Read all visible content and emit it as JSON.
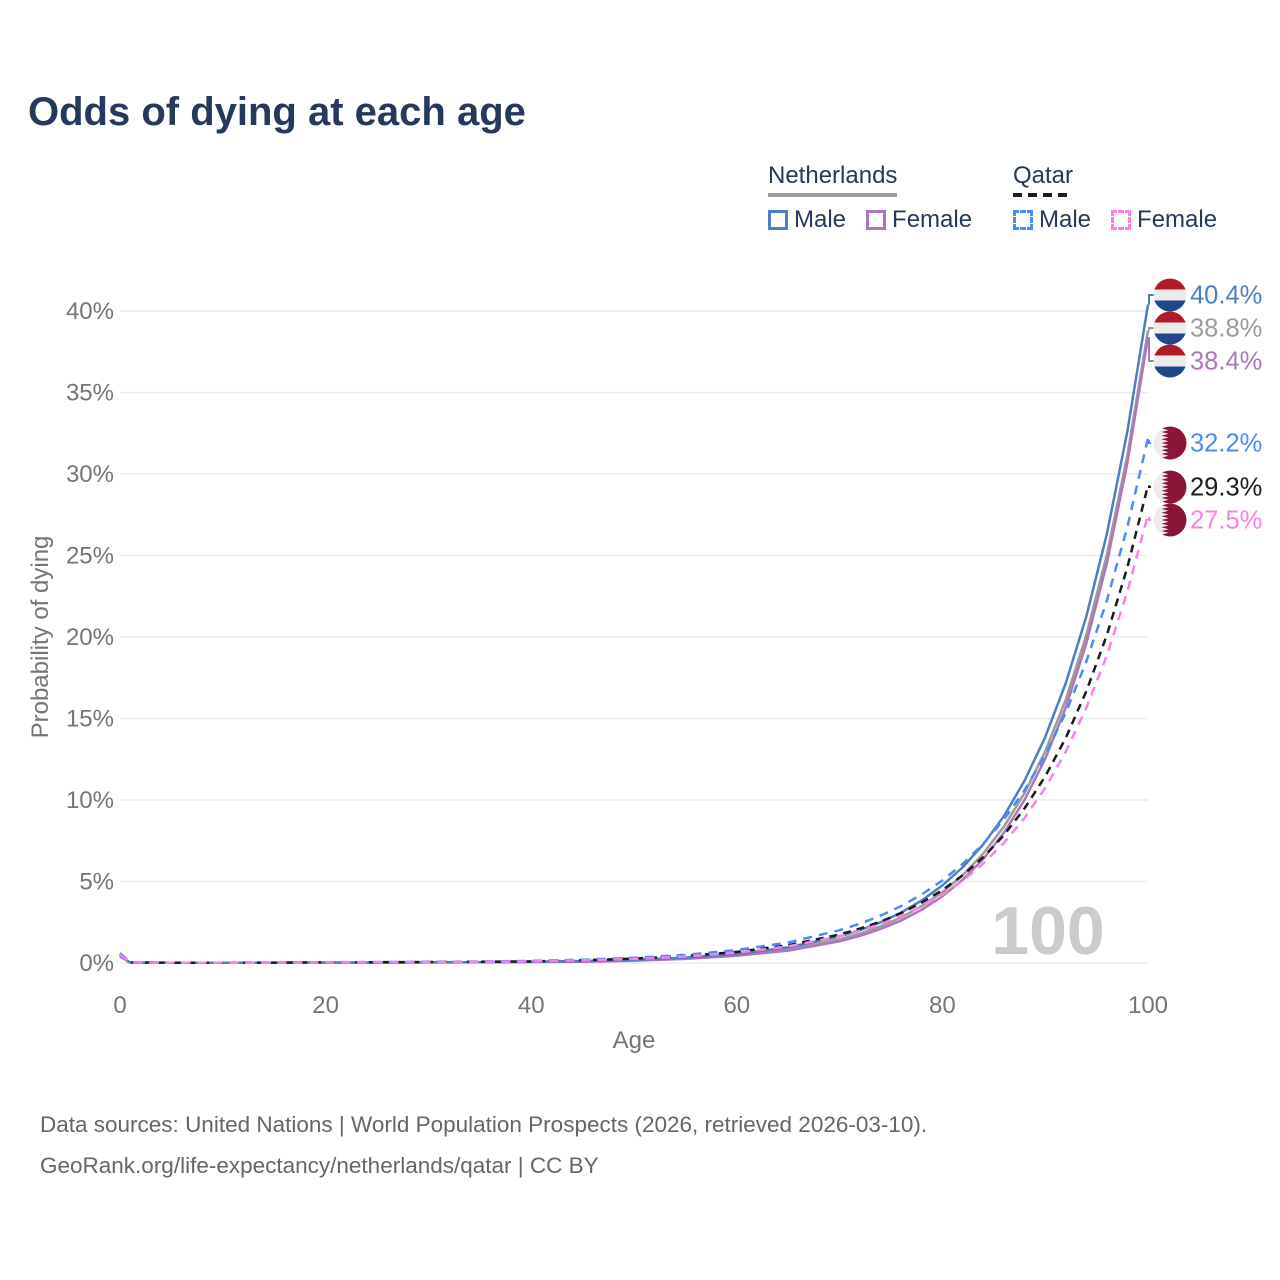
{
  "title": "Odds of dying at each age",
  "legend": {
    "groups": [
      {
        "label": "Netherlands",
        "line_style": "solid",
        "underline_color": "#9C9C9C",
        "items": [
          {
            "label": "Male",
            "color": "#4D7EC2",
            "dash": false
          },
          {
            "label": "Female",
            "color": "#AF75BC",
            "dash": false
          }
        ]
      },
      {
        "label": "Qatar",
        "line_style": "dashed",
        "underline_color": "#1B1B1B",
        "items": [
          {
            "label": "Male",
            "color": "#4A8CF7",
            "dash": true
          },
          {
            "label": "Female",
            "color": "#FA80E8",
            "dash": true
          }
        ]
      }
    ]
  },
  "chart_data": {
    "type": "line",
    "title": "Odds of dying at each age",
    "xlabel": "Age",
    "ylabel": "Probability of dying",
    "xlim": [
      0,
      100
    ],
    "ylim": [
      0,
      40.4
    ],
    "xticks": [
      0,
      20,
      40,
      60,
      80,
      100
    ],
    "xtick_labels": [
      "0",
      "20",
      "40",
      "60",
      "80",
      "100"
    ],
    "yticks": [
      0,
      5,
      10,
      15,
      20,
      25,
      30,
      35,
      40
    ],
    "ytick_labels": [
      "0%",
      "5%",
      "10%",
      "15%",
      "20%",
      "25%",
      "30%",
      "35%",
      "40%"
    ],
    "grid": "horizontal",
    "legend_position": "top-right",
    "watermark": "100",
    "series": [
      {
        "id": "netherlands-all",
        "name": "Netherlands",
        "country": "Netherlands",
        "sex": "all",
        "color": "#9C9C9C",
        "dash": false,
        "flag": "netherlands",
        "end_label": "38.8%",
        "points": [
          [
            0,
            0.42
          ],
          [
            1,
            0.025
          ],
          [
            5,
            0.01
          ],
          [
            10,
            0.01
          ],
          [
            15,
            0.015
          ],
          [
            20,
            0.025
          ],
          [
            25,
            0.025
          ],
          [
            30,
            0.035
          ],
          [
            35,
            0.045
          ],
          [
            40,
            0.07
          ],
          [
            45,
            0.1
          ],
          [
            50,
            0.17
          ],
          [
            55,
            0.28
          ],
          [
            60,
            0.49
          ],
          [
            65,
            0.84
          ],
          [
            70,
            1.45
          ],
          [
            72,
            1.81
          ],
          [
            74,
            2.25
          ],
          [
            76,
            2.8
          ],
          [
            78,
            3.49
          ],
          [
            80,
            4.34
          ],
          [
            82,
            5.4
          ],
          [
            84,
            6.73
          ],
          [
            86,
            8.38
          ],
          [
            88,
            10.43
          ],
          [
            90,
            12.98
          ],
          [
            92,
            16.16
          ],
          [
            94,
            20.11
          ],
          [
            96,
            25.04
          ],
          [
            98,
            31.17
          ],
          [
            100,
            38.8
          ]
        ]
      },
      {
        "id": "netherlands-female",
        "name": "Netherlands Female",
        "country": "Netherlands",
        "sex": "female",
        "color": "#AF75BC",
        "dash": false,
        "flag": "netherlands",
        "end_label": "38.4%",
        "points": [
          [
            0,
            0.4
          ],
          [
            1,
            0.02
          ],
          [
            5,
            0.01
          ],
          [
            10,
            0.01
          ],
          [
            15,
            0.01
          ],
          [
            20,
            0.02
          ],
          [
            25,
            0.02
          ],
          [
            30,
            0.03
          ],
          [
            35,
            0.04
          ],
          [
            40,
            0.06
          ],
          [
            45,
            0.08
          ],
          [
            50,
            0.14
          ],
          [
            55,
            0.25
          ],
          [
            60,
            0.44
          ],
          [
            65,
            0.76
          ],
          [
            70,
            1.33
          ],
          [
            72,
            1.67
          ],
          [
            74,
            2.09
          ],
          [
            76,
            2.61
          ],
          [
            78,
            3.27
          ],
          [
            80,
            4.09
          ],
          [
            82,
            5.12
          ],
          [
            84,
            6.4
          ],
          [
            86,
            8.01
          ],
          [
            88,
            10.01
          ],
          [
            90,
            12.53
          ],
          [
            92,
            15.68
          ],
          [
            94,
            19.61
          ],
          [
            96,
            24.53
          ],
          [
            98,
            30.69
          ],
          [
            100,
            38.4
          ]
        ]
      },
      {
        "id": "netherlands-male",
        "name": "Netherlands Male",
        "country": "Netherlands",
        "sex": "male",
        "color": "#4D7EC2",
        "dash": false,
        "flag": "netherlands",
        "end_label": "40.4%",
        "points": [
          [
            0,
            0.45
          ],
          [
            1,
            0.03
          ],
          [
            5,
            0.01
          ],
          [
            10,
            0.01
          ],
          [
            15,
            0.02
          ],
          [
            20,
            0.03
          ],
          [
            25,
            0.03
          ],
          [
            30,
            0.04
          ],
          [
            35,
            0.05
          ],
          [
            40,
            0.08
          ],
          [
            45,
            0.12
          ],
          [
            50,
            0.2
          ],
          [
            55,
            0.33
          ],
          [
            60,
            0.56
          ],
          [
            65,
            0.96
          ],
          [
            70,
            1.63
          ],
          [
            72,
            2.02
          ],
          [
            74,
            2.5
          ],
          [
            76,
            3.1
          ],
          [
            78,
            3.84
          ],
          [
            80,
            4.76
          ],
          [
            82,
            5.89
          ],
          [
            84,
            7.29
          ],
          [
            86,
            9.03
          ],
          [
            88,
            11.19
          ],
          [
            90,
            13.86
          ],
          [
            92,
            17.17
          ],
          [
            94,
            21.26
          ],
          [
            96,
            26.33
          ],
          [
            98,
            32.62
          ],
          [
            100,
            40.4
          ]
        ]
      },
      {
        "id": "qatar-all",
        "name": "Qatar",
        "country": "Qatar",
        "sex": "all",
        "color": "#1B1B1B",
        "dash": true,
        "flag": "qatar",
        "end_label": "29.3%",
        "points": [
          [
            0,
            0.55
          ],
          [
            1,
            0.04
          ],
          [
            5,
            0.018
          ],
          [
            10,
            0.018
          ],
          [
            15,
            0.025
          ],
          [
            20,
            0.04
          ],
          [
            25,
            0.05
          ],
          [
            30,
            0.06
          ],
          [
            35,
            0.08
          ],
          [
            40,
            0.1
          ],
          [
            45,
            0.17
          ],
          [
            50,
            0.27
          ],
          [
            55,
            0.43
          ],
          [
            60,
            0.68
          ],
          [
            65,
            1.09
          ],
          [
            70,
            1.75
          ],
          [
            72,
            2.11
          ],
          [
            74,
            2.54
          ],
          [
            76,
            3.07
          ],
          [
            78,
            3.71
          ],
          [
            80,
            4.47
          ],
          [
            82,
            5.4
          ],
          [
            84,
            6.51
          ],
          [
            86,
            7.86
          ],
          [
            88,
            9.49
          ],
          [
            90,
            11.45
          ],
          [
            92,
            13.81
          ],
          [
            94,
            16.67
          ],
          [
            96,
            20.12
          ],
          [
            98,
            24.28
          ],
          [
            100,
            29.3
          ]
        ]
      },
      {
        "id": "qatar-male",
        "name": "Qatar Male",
        "country": "Qatar",
        "sex": "male",
        "color": "#4A8CF7",
        "dash": true,
        "flag": "qatar",
        "end_label": "32.2%",
        "points": [
          [
            0,
            0.6
          ],
          [
            1,
            0.05
          ],
          [
            5,
            0.02
          ],
          [
            10,
            0.02
          ],
          [
            15,
            0.03
          ],
          [
            20,
            0.05
          ],
          [
            25,
            0.06
          ],
          [
            30,
            0.07
          ],
          [
            35,
            0.09
          ],
          [
            40,
            0.13
          ],
          [
            45,
            0.2
          ],
          [
            50,
            0.32
          ],
          [
            55,
            0.5
          ],
          [
            60,
            0.8
          ],
          [
            65,
            1.26
          ],
          [
            70,
            2.01
          ],
          [
            72,
            2.42
          ],
          [
            74,
            2.91
          ],
          [
            76,
            3.5
          ],
          [
            78,
            4.21
          ],
          [
            80,
            5.06
          ],
          [
            82,
            6.09
          ],
          [
            84,
            7.33
          ],
          [
            86,
            8.82
          ],
          [
            88,
            10.61
          ],
          [
            90,
            12.77
          ],
          [
            92,
            15.36
          ],
          [
            94,
            18.49
          ],
          [
            96,
            22.24
          ],
          [
            98,
            26.76
          ],
          [
            100,
            32.2
          ]
        ]
      },
      {
        "id": "qatar-female",
        "name": "Qatar Female",
        "country": "Qatar",
        "sex": "female",
        "color": "#FA80E8",
        "dash": true,
        "flag": "qatar",
        "end_label": "27.5%",
        "points": [
          [
            0,
            0.5
          ],
          [
            1,
            0.035
          ],
          [
            5,
            0.015
          ],
          [
            10,
            0.015
          ],
          [
            15,
            0.02
          ],
          [
            20,
            0.035
          ],
          [
            25,
            0.04
          ],
          [
            30,
            0.05
          ],
          [
            35,
            0.07
          ],
          [
            40,
            0.1
          ],
          [
            45,
            0.16
          ],
          [
            50,
            0.25
          ],
          [
            55,
            0.4
          ],
          [
            60,
            0.64
          ],
          [
            65,
            1.02
          ],
          [
            70,
            1.64
          ],
          [
            72,
            1.98
          ],
          [
            74,
            2.39
          ],
          [
            76,
            2.88
          ],
          [
            78,
            3.48
          ],
          [
            80,
            4.2
          ],
          [
            82,
            5.07
          ],
          [
            84,
            6.11
          ],
          [
            86,
            7.38
          ],
          [
            88,
            8.9
          ],
          [
            90,
            10.74
          ],
          [
            92,
            12.97
          ],
          [
            94,
            15.65
          ],
          [
            96,
            18.88
          ],
          [
            98,
            22.79
          ],
          [
            100,
            27.5
          ]
        ]
      }
    ],
    "flag_colors": {
      "netherlands": {
        "red": "#AE1C28",
        "white": "#ECECEC",
        "blue": "#21468B"
      },
      "qatar": {
        "maroon": "#8A1538",
        "white": "#ECECEC"
      }
    }
  },
  "footer": {
    "line1": "Data sources: United Nations | World Population Prospects (2026, retrieved 2026-03-10).",
    "line2": "GeoRank.org/life-expectancy/netherlands/qatar | CC BY"
  }
}
